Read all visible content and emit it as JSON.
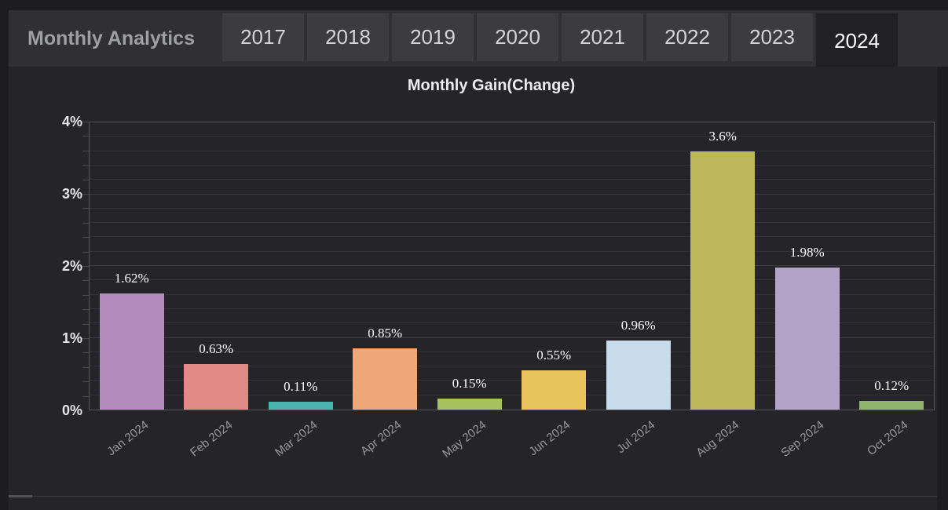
{
  "header": {
    "title": "Monthly Analytics",
    "tabs": [
      {
        "label": "2017",
        "active": false
      },
      {
        "label": "2018",
        "active": false
      },
      {
        "label": "2019",
        "active": false
      },
      {
        "label": "2020",
        "active": false
      },
      {
        "label": "2021",
        "active": false
      },
      {
        "label": "2022",
        "active": false
      },
      {
        "label": "2023",
        "active": false
      },
      {
        "label": "2024",
        "active": true
      }
    ]
  },
  "chart_data": {
    "type": "bar",
    "title": "Monthly Gain(Change)",
    "categories": [
      "Jan 2024",
      "Feb 2024",
      "Mar 2024",
      "Apr 2024",
      "May 2024",
      "Jun 2024",
      "Jul 2024",
      "Aug 2024",
      "Sep 2024",
      "Oct 2024"
    ],
    "values": [
      1.62,
      0.63,
      0.11,
      0.85,
      0.15,
      0.55,
      0.96,
      3.6,
      1.98,
      0.12
    ],
    "value_labels": [
      "1.62%",
      "0.63%",
      "0.11%",
      "0.85%",
      "0.15%",
      "0.55%",
      "0.96%",
      "3.6%",
      "1.98%",
      "0.12%"
    ],
    "bar_colors": [
      "#b48cbb",
      "#e08a85",
      "#4ab4af",
      "#f0a87a",
      "#a5c25c",
      "#e9c45e",
      "#c9dcec",
      "#bdb85a",
      "#b3a4c7",
      "#8fb26d"
    ],
    "xlabel": "",
    "ylabel": "",
    "ylim": [
      0,
      4
    ],
    "ytick_labels": [
      "0%",
      "1%",
      "2%",
      "3%",
      "4%"
    ],
    "grid": "horizontal minor lines every 0.2%",
    "grid_minor_step": 0.2,
    "legend": "none"
  },
  "colors": {
    "page_background": "#1c1c21",
    "header_background": "#2f2f34",
    "tab_background": "#3b3b40",
    "active_tab_background": "#202025",
    "chart_background": "#242429",
    "plot_border": "#55555a",
    "gridline": "#323238",
    "value_label_text": "#ffffff",
    "axis_label_text": "#e6e6e8",
    "month_label_text": "#97979b"
  }
}
